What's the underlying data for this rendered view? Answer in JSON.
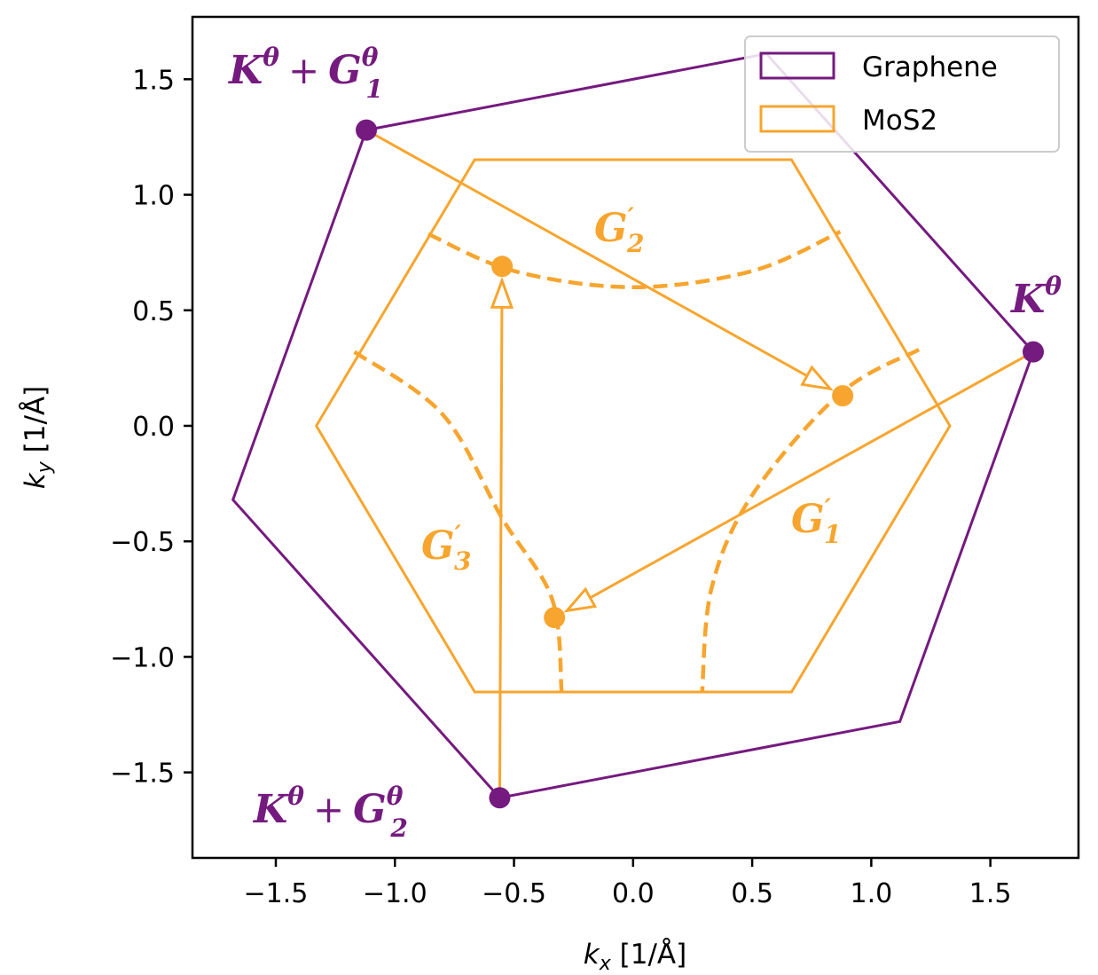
{
  "chart_data": {
    "type": "line",
    "title": "",
    "xlabel": "k_x [1/Å]",
    "ylabel": "k_y [1/Å]",
    "xlim": [
      -1.85,
      1.87
    ],
    "ylim": [
      -1.87,
      1.77
    ],
    "xticks": [
      -1.5,
      -1.0,
      -0.5,
      0.0,
      0.5,
      1.0,
      1.5
    ],
    "yticks": [
      -1.5,
      -1.0,
      -0.5,
      0.0,
      0.5,
      1.0,
      1.5
    ],
    "xtick_labels": [
      "−1.5",
      "−1.0",
      "−0.5",
      "0.0",
      "0.5",
      "1.0",
      "1.5"
    ],
    "ytick_labels": [
      "−1.5",
      "−1.0",
      "−0.5",
      "0.0",
      "0.5",
      "1.0",
      "1.5"
    ],
    "grid": false,
    "legend_position": "top-right",
    "colors": {
      "graphene": "#751a7f",
      "mos2": "#f7a52e"
    },
    "series": [
      {
        "name": "Graphene",
        "kind": "hexagon",
        "points": [
          [
            1.68,
            0.32
          ],
          [
            1.12,
            -1.28
          ],
          [
            -0.56,
            -1.61
          ],
          [
            -1.68,
            -0.32
          ],
          [
            -1.12,
            1.28
          ],
          [
            0.56,
            1.61
          ]
        ]
      },
      {
        "name": "MoS2",
        "kind": "hexagon",
        "points": [
          [
            1.33,
            0.0
          ],
          [
            0.665,
            -1.152
          ],
          [
            -0.665,
            -1.152
          ],
          [
            -1.33,
            0.0
          ],
          [
            -0.665,
            1.152
          ],
          [
            0.665,
            1.152
          ]
        ]
      }
    ],
    "graphene_points": [
      {
        "id": "K",
        "x": 1.68,
        "y": 0.32
      },
      {
        "id": "K+G1",
        "x": -1.12,
        "y": 1.28
      },
      {
        "id": "K+G2",
        "x": -0.56,
        "y": -1.61
      }
    ],
    "mos2_points": [
      {
        "id": "p1",
        "x": 0.88,
        "y": 0.13
      },
      {
        "id": "p2",
        "x": -0.55,
        "y": 0.69
      },
      {
        "id": "p3",
        "x": -0.33,
        "y": -0.83
      }
    ],
    "arrows": [
      {
        "id": "G1prime",
        "from": [
          1.68,
          0.32
        ],
        "to": [
          -0.33,
          -0.83
        ]
      },
      {
        "id": "G2prime",
        "from": [
          -1.12,
          1.28
        ],
        "to": [
          0.88,
          0.13
        ]
      },
      {
        "id": "G3prime",
        "from": [
          -0.56,
          -1.61
        ],
        "to": [
          -0.55,
          0.69
        ]
      }
    ],
    "dashed_arcs": [
      {
        "id": "arc-top",
        "points": [
          [
            -0.86,
            0.83
          ],
          [
            -0.5,
            0.67
          ],
          [
            0.0,
            0.6
          ],
          [
            0.5,
            0.67
          ],
          [
            0.87,
            0.84
          ]
        ]
      },
      {
        "id": "arc-right",
        "points": [
          [
            1.2,
            0.33
          ],
          [
            0.87,
            0.14
          ],
          [
            0.5,
            -0.3
          ],
          [
            0.33,
            -0.7
          ],
          [
            0.29,
            -1.15
          ]
        ]
      },
      {
        "id": "arc-left",
        "points": [
          [
            -1.17,
            0.32
          ],
          [
            -0.8,
            0.05
          ],
          [
            -0.55,
            -0.4
          ],
          [
            -0.34,
            -0.75
          ],
          [
            -0.3,
            -1.15
          ]
        ]
      }
    ],
    "annotations": [
      {
        "id": "K-theta",
        "base": "K",
        "sup": "θ"
      },
      {
        "id": "K-theta-G1",
        "base": "K",
        "sup": "θ",
        "plus": "+",
        "term": "G",
        "term_sup": "θ",
        "term_sub": "1"
      },
      {
        "id": "K-theta-G2",
        "base": "K",
        "sup": "θ",
        "plus": "+",
        "term": "G",
        "term_sup": "θ",
        "term_sub": "2"
      },
      {
        "id": "G1-prime",
        "base": "G",
        "prime": "′",
        "sub": "1"
      },
      {
        "id": "G2-prime",
        "base": "G",
        "prime": "′",
        "sub": "2"
      },
      {
        "id": "G3-prime",
        "base": "G",
        "prime": "′",
        "sub": "3"
      }
    ]
  }
}
